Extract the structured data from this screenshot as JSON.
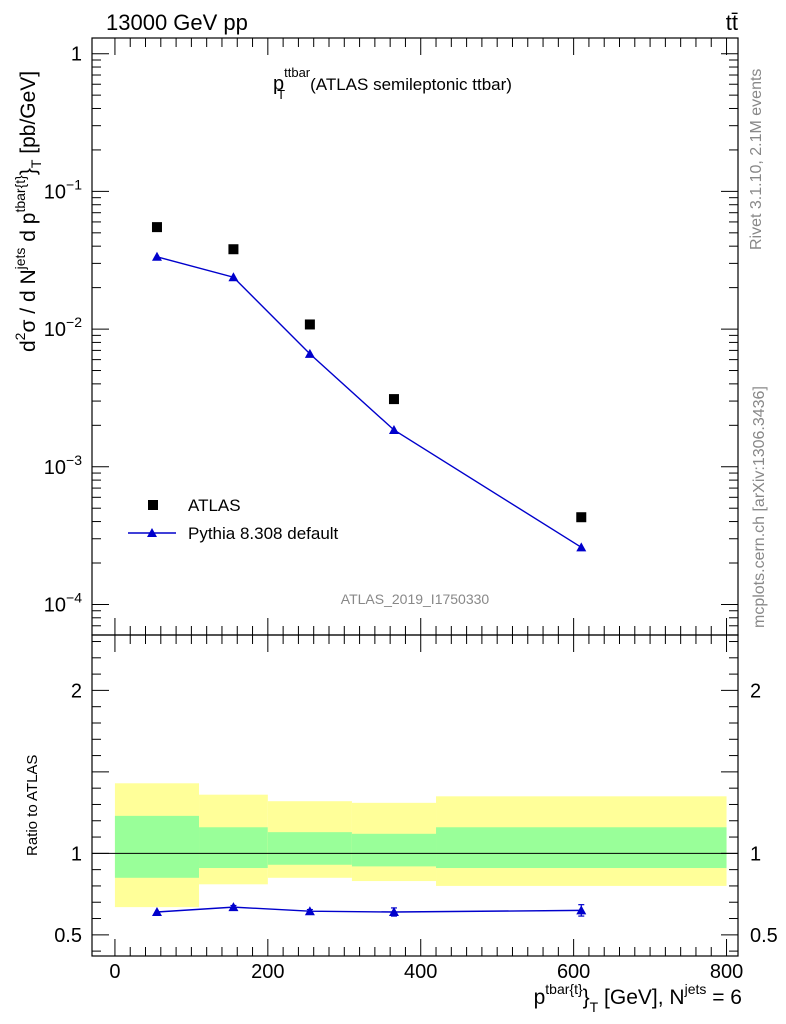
{
  "header": {
    "energy": "13000 GeV pp",
    "process": "tt̄"
  },
  "side": {
    "rivet": "Rivet 3.1.10,  2.1M events",
    "mcplots": "mcplots.cern.ch [arXiv:1306.3436]"
  },
  "chart_data": [
    {
      "type": "scatter",
      "title": "(ATLAS semileptonic ttbar)",
      "title_symbol": {
        "base": "p",
        "sup": "ttbar",
        "sub": "T"
      },
      "ylabel": "d²σ / d N^jets d p^tbar{t}_T [pb/GeV]",
      "ylabel_parts": {
        "a": "d",
        "a_sup": "2",
        "b": "σ  /  d N",
        "b_sup": "jets",
        "c": " d p",
        "c_sup": "tbar{t}",
        "d": "}",
        "d_sub": "T",
        "e": " [pb/GeV]"
      },
      "yscale": "log",
      "ylim": [
        6e-05,
        1.3
      ],
      "xlim": [
        -30,
        815
      ],
      "y_tick_labels": [
        {
          "v": 1,
          "base": "1",
          "exp": ""
        },
        {
          "v": 0.1,
          "base": "10",
          "exp": "−1"
        },
        {
          "v": 0.01,
          "base": "10",
          "exp": "−2"
        },
        {
          "v": 0.001,
          "base": "10",
          "exp": "−3"
        },
        {
          "v": 0.0001,
          "base": "10",
          "exp": "−4"
        }
      ],
      "watermark": "ATLAS_2019_I1750330",
      "legend_position": "bottom-left",
      "series": [
        {
          "name": "ATLAS",
          "color": "#000000",
          "marker": "square",
          "x": [
            55,
            155,
            255,
            365,
            610
          ],
          "y": [
            0.055,
            0.038,
            0.0108,
            0.0031,
            0.00043
          ]
        },
        {
          "name": "Pythia 8.308 default",
          "color": "#0000cc",
          "marker": "triangle",
          "x": [
            55,
            155,
            255,
            365,
            610
          ],
          "y": [
            0.0335,
            0.0238,
            0.0066,
            0.00185,
            0.00026
          ]
        }
      ]
    },
    {
      "type": "line",
      "ylabel": "Ratio to ATLAS",
      "xlabel": "p^tbar{t}_T [GeV], N^jets = 6",
      "xlabel_parts": {
        "a": "p",
        "a_sup": "tbar{t}",
        "b": "}",
        "b_sub": "T",
        "c": " [GeV], N",
        "c_sup": "jets",
        "d": " = 6"
      },
      "yscale": "linear",
      "ylim": [
        0.37,
        2.34
      ],
      "xlim": [
        -30,
        815
      ],
      "x_ticks": [
        0,
        200,
        400,
        600,
        800
      ],
      "y_ticks": [
        0.5,
        1,
        2
      ],
      "bands": {
        "edges": [
          0,
          110,
          200,
          310,
          420,
          800
        ],
        "yellow_lo": [
          0.67,
          0.81,
          0.85,
          0.83,
          0.8
        ],
        "yellow_hi": [
          1.43,
          1.36,
          1.32,
          1.31,
          1.35
        ],
        "green_lo": [
          0.85,
          0.91,
          0.93,
          0.92,
          0.91
        ],
        "green_hi": [
          1.23,
          1.16,
          1.13,
          1.12,
          1.16
        ],
        "yellow_color": "#ffff99",
        "green_color": "#99ff99"
      },
      "series": [
        {
          "name": "Pythia 8.308 default",
          "color": "#0000cc",
          "marker": "triangle",
          "x": [
            55,
            155,
            255,
            365,
            610
          ],
          "y": [
            0.64,
            0.67,
            0.645,
            0.64,
            0.65
          ],
          "err": [
            0.0,
            0.01,
            0.01,
            0.025,
            0.035
          ]
        }
      ]
    }
  ]
}
